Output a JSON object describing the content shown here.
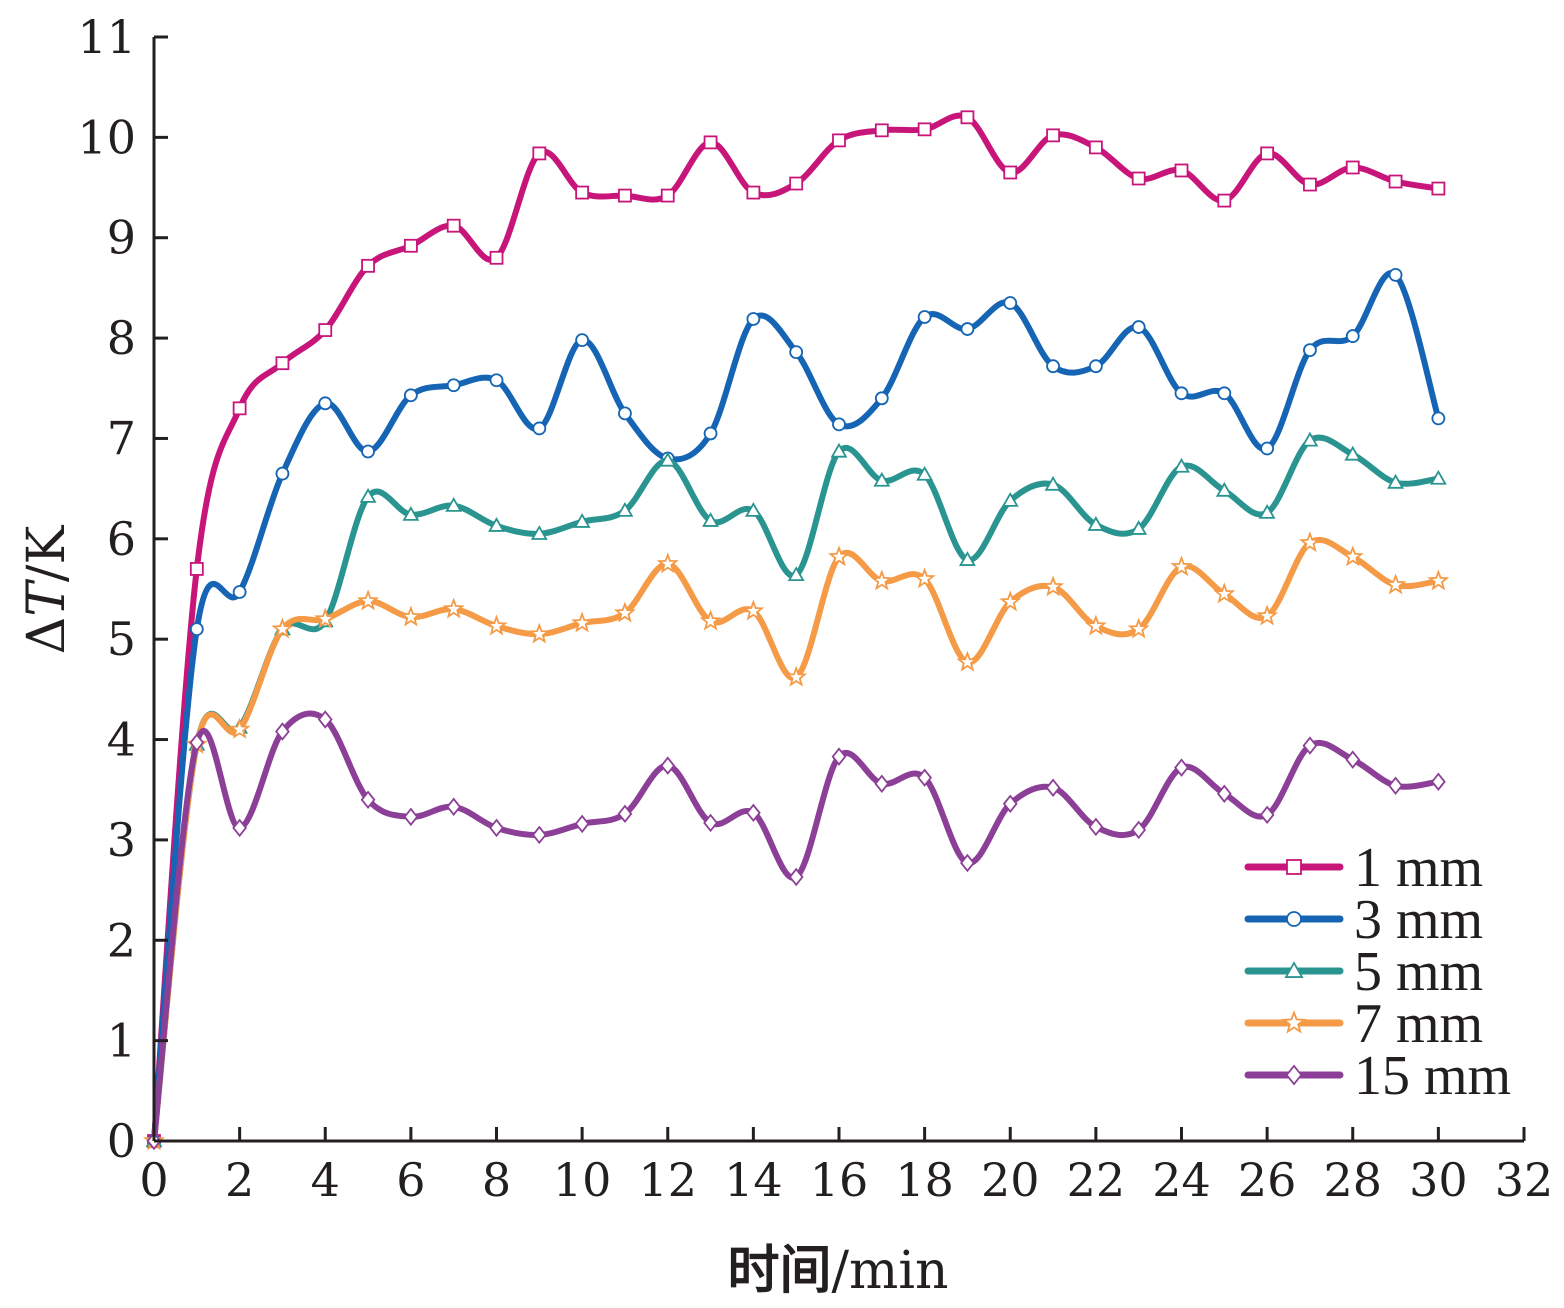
{
  "chart_data": {
    "type": "line",
    "xlabel_cn": "时间",
    "xlabel_unit": "/min",
    "ylabel_delta": "Δ",
    "ylabel_var": "T",
    "ylabel_unit": "/K",
    "xlim": [
      0,
      32
    ],
    "ylim": [
      0,
      11
    ],
    "xticks": [
      "0",
      "2",
      "4",
      "6",
      "8",
      "10",
      "12",
      "14",
      "16",
      "18",
      "20",
      "22",
      "24",
      "26",
      "28",
      "30",
      "32"
    ],
    "yticks": [
      "0",
      "1",
      "2",
      "3",
      "4",
      "5",
      "6",
      "7",
      "8",
      "9",
      "10",
      "11"
    ],
    "grid": false,
    "legend_position": "bottom-right",
    "x": [
      0,
      1,
      2,
      3,
      4,
      5,
      6,
      7,
      8,
      9,
      10,
      11,
      12,
      13,
      14,
      15,
      16,
      17,
      18,
      19,
      20,
      21,
      22,
      23,
      24,
      25,
      26,
      27,
      28,
      29,
      30
    ],
    "series": [
      {
        "name": "1 mm",
        "color": "#c8157a",
        "marker": "square",
        "values": [
          0,
          5.7,
          7.3,
          7.75,
          8.08,
          8.72,
          8.92,
          9.12,
          8.8,
          9.84,
          9.45,
          9.42,
          9.42,
          9.95,
          9.45,
          9.54,
          9.97,
          10.07,
          10.08,
          10.2,
          9.65,
          10.02,
          9.9,
          9.59,
          9.67,
          9.37,
          9.84,
          9.53,
          9.7,
          9.56,
          9.49
        ]
      },
      {
        "name": "3 mm",
        "color": "#1565b4",
        "marker": "circle",
        "values": [
          0,
          5.1,
          5.47,
          6.65,
          7.35,
          6.87,
          7.43,
          7.53,
          7.58,
          7.1,
          7.98,
          7.25,
          6.8,
          7.05,
          8.19,
          7.86,
          7.14,
          7.4,
          8.21,
          8.09,
          8.35,
          7.72,
          7.72,
          8.11,
          7.45,
          7.45,
          6.9,
          7.88,
          8.02,
          8.63,
          7.2
        ]
      },
      {
        "name": "5 mm",
        "color": "#2a9590",
        "marker": "triangle",
        "values": [
          0,
          3.95,
          4.12,
          5.1,
          5.18,
          6.42,
          6.24,
          6.33,
          6.13,
          6.05,
          6.17,
          6.28,
          6.78,
          6.18,
          6.28,
          5.64,
          6.87,
          6.58,
          6.64,
          5.79,
          6.38,
          6.54,
          6.14,
          6.1,
          6.72,
          6.48,
          6.26,
          6.98,
          6.84,
          6.56,
          6.6
        ]
      },
      {
        "name": "7 mm",
        "color": "#f59a46",
        "marker": "star",
        "values": [
          0,
          3.95,
          4.1,
          5.1,
          5.2,
          5.38,
          5.22,
          5.3,
          5.13,
          5.05,
          5.16,
          5.26,
          5.75,
          5.18,
          5.28,
          4.62,
          5.82,
          5.58,
          5.6,
          4.77,
          5.37,
          5.52,
          5.13,
          5.1,
          5.72,
          5.45,
          5.23,
          5.96,
          5.82,
          5.54,
          5.58
        ]
      },
      {
        "name": "15 mm",
        "color": "#8c3f96",
        "marker": "diamond",
        "values": [
          0,
          3.97,
          3.12,
          4.08,
          4.2,
          3.4,
          3.23,
          3.33,
          3.12,
          3.05,
          3.16,
          3.26,
          3.74,
          3.17,
          3.27,
          2.63,
          3.83,
          3.56,
          3.62,
          2.77,
          3.36,
          3.52,
          3.13,
          3.1,
          3.72,
          3.46,
          3.25,
          3.94,
          3.8,
          3.54,
          3.58
        ]
      }
    ]
  }
}
